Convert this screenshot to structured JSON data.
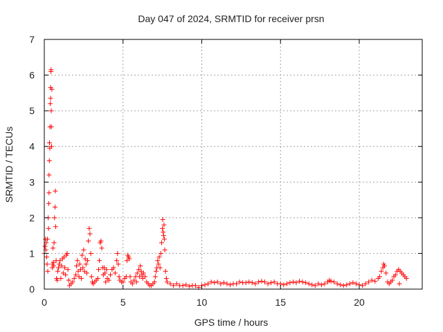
{
  "chart_data": {
    "type": "scatter",
    "title": "Day 047 of 2024, SRMTID for receiver prsn",
    "xlabel": "GPS time / hours",
    "ylabel": "SRMTID / TECUs",
    "xlim": [
      0,
      24
    ],
    "ylim": [
      0,
      7
    ],
    "xticks": [
      0,
      5,
      10,
      15,
      20
    ],
    "yticks": [
      0,
      1,
      2,
      3,
      4,
      5,
      6,
      7
    ],
    "xtick_labels": [
      "0",
      "5",
      "10",
      "15",
      "20"
    ],
    "ytick_labels": [
      "0",
      "1",
      "2",
      "3",
      "4",
      "5",
      "6",
      "7"
    ],
    "grid": true,
    "marker": "+",
    "color": "#ff0000",
    "series": [
      {
        "name": "SRMTID",
        "points": [
          [
            0.0,
            1.0
          ],
          [
            0.05,
            1.2
          ],
          [
            0.08,
            1.4
          ],
          [
            0.1,
            1.1
          ],
          [
            0.12,
            1.3
          ],
          [
            0.15,
            0.9
          ],
          [
            0.18,
            0.7
          ],
          [
            0.2,
            1.4
          ],
          [
            0.22,
            0.5
          ],
          [
            0.25,
            2.0
          ],
          [
            0.27,
            1.7
          ],
          [
            0.28,
            2.4
          ],
          [
            0.3,
            2.7
          ],
          [
            0.3,
            3.2
          ],
          [
            0.32,
            3.6
          ],
          [
            0.33,
            4.1
          ],
          [
            0.35,
            3.95
          ],
          [
            0.36,
            4.55
          ],
          [
            0.38,
            5.2
          ],
          [
            0.4,
            5.35
          ],
          [
            0.4,
            5.65
          ],
          [
            0.42,
            6.1
          ],
          [
            0.43,
            6.15
          ],
          [
            0.44,
            5.0
          ],
          [
            0.45,
            4.55
          ],
          [
            0.46,
            4.0
          ],
          [
            0.48,
            5.6
          ],
          [
            0.5,
            0.6
          ],
          [
            0.52,
            0.7
          ],
          [
            0.55,
            1.15
          ],
          [
            0.58,
            0.75
          ],
          [
            0.6,
            0.65
          ],
          [
            0.62,
            1.3
          ],
          [
            0.65,
            2.0
          ],
          [
            0.68,
            2.3
          ],
          [
            0.7,
            2.75
          ],
          [
            0.72,
            1.75
          ],
          [
            0.75,
            0.8
          ],
          [
            0.78,
            0.3
          ],
          [
            0.82,
            0.25
          ],
          [
            0.85,
            0.5
          ],
          [
            0.9,
            0.6
          ],
          [
            0.95,
            0.7
          ],
          [
            1.0,
            0.8
          ],
          [
            1.05,
            0.3
          ],
          [
            1.1,
            0.65
          ],
          [
            1.15,
            0.85
          ],
          [
            1.2,
            0.45
          ],
          [
            1.25,
            0.9
          ],
          [
            1.3,
            0.6
          ],
          [
            1.35,
            0.4
          ],
          [
            1.4,
            0.95
          ],
          [
            1.45,
            1.0
          ],
          [
            1.5,
            0.55
          ],
          [
            1.55,
            0.25
          ],
          [
            1.6,
            0.1
          ],
          [
            1.7,
            0.15
          ],
          [
            1.8,
            0.2
          ],
          [
            1.9,
            0.3
          ],
          [
            2.0,
            0.4
          ],
          [
            2.05,
            0.65
          ],
          [
            2.1,
            0.8
          ],
          [
            2.15,
            0.5
          ],
          [
            2.2,
            0.35
          ],
          [
            2.25,
            0.7
          ],
          [
            2.3,
            0.55
          ],
          [
            2.35,
            0.3
          ],
          [
            2.4,
            0.95
          ],
          [
            2.45,
            0.6
          ],
          [
            2.5,
            1.1
          ],
          [
            2.55,
            0.5
          ],
          [
            2.6,
            0.85
          ],
          [
            2.65,
            0.7
          ],
          [
            2.7,
            0.45
          ],
          [
            2.75,
            0.8
          ],
          [
            2.8,
            1.35
          ],
          [
            2.85,
            1.7
          ],
          [
            2.9,
            1.55
          ],
          [
            2.95,
            1.0
          ],
          [
            3.0,
            0.35
          ],
          [
            3.05,
            0.2
          ],
          [
            3.1,
            0.15
          ],
          [
            3.2,
            0.2
          ],
          [
            3.3,
            0.25
          ],
          [
            3.4,
            0.3
          ],
          [
            3.45,
            0.55
          ],
          [
            3.5,
            0.8
          ],
          [
            3.55,
            1.3
          ],
          [
            3.6,
            1.35
          ],
          [
            3.65,
            1.15
          ],
          [
            3.7,
            0.6
          ],
          [
            3.75,
            0.4
          ],
          [
            3.8,
            0.6
          ],
          [
            3.85,
            0.45
          ],
          [
            3.9,
            0.2
          ],
          [
            3.95,
            0.55
          ],
          [
            4.0,
            0.3
          ],
          [
            4.1,
            0.25
          ],
          [
            4.2,
            0.4
          ],
          [
            4.3,
            0.55
          ],
          [
            4.4,
            0.6
          ],
          [
            4.5,
            0.45
          ],
          [
            4.6,
            0.8
          ],
          [
            4.65,
            1.0
          ],
          [
            4.7,
            0.7
          ],
          [
            4.75,
            0.35
          ],
          [
            4.8,
            0.25
          ],
          [
            4.9,
            0.2
          ],
          [
            5.0,
            0.2
          ],
          [
            5.1,
            0.3
          ],
          [
            5.2,
            0.35
          ],
          [
            5.25,
            0.8
          ],
          [
            5.3,
            0.95
          ],
          [
            5.35,
            0.9
          ],
          [
            5.4,
            0.85
          ],
          [
            5.45,
            0.35
          ],
          [
            5.5,
            0.2
          ],
          [
            5.6,
            0.15
          ],
          [
            5.7,
            0.25
          ],
          [
            5.8,
            0.35
          ],
          [
            5.85,
            0.2
          ],
          [
            5.9,
            0.45
          ],
          [
            6.0,
            0.55
          ],
          [
            6.05,
            0.35
          ],
          [
            6.1,
            0.65
          ],
          [
            6.15,
            0.5
          ],
          [
            6.2,
            0.4
          ],
          [
            6.25,
            0.3
          ],
          [
            6.3,
            0.45
          ],
          [
            6.4,
            0.35
          ],
          [
            6.5,
            0.2
          ],
          [
            6.6,
            0.15
          ],
          [
            6.7,
            0.1
          ],
          [
            6.8,
            0.1
          ],
          [
            6.9,
            0.15
          ],
          [
            7.0,
            0.2
          ],
          [
            7.05,
            0.35
          ],
          [
            7.1,
            0.5
          ],
          [
            7.15,
            0.6
          ],
          [
            7.2,
            0.8
          ],
          [
            7.25,
            0.7
          ],
          [
            7.3,
            0.9
          ],
          [
            7.35,
            0.6
          ],
          [
            7.4,
            1.0
          ],
          [
            7.45,
            1.3
          ],
          [
            7.5,
            1.7
          ],
          [
            7.52,
            1.95
          ],
          [
            7.55,
            1.6
          ],
          [
            7.58,
            1.5
          ],
          [
            7.6,
            1.8
          ],
          [
            7.62,
            1.4
          ],
          [
            7.65,
            1.1
          ],
          [
            7.7,
            0.5
          ],
          [
            7.75,
            0.3
          ],
          [
            7.8,
            0.2
          ],
          [
            8.0,
            0.15
          ],
          [
            8.2,
            0.1
          ],
          [
            8.4,
            0.15
          ],
          [
            8.6,
            0.1
          ],
          [
            8.8,
            0.1
          ],
          [
            9.0,
            0.12
          ],
          [
            9.2,
            0.08
          ],
          [
            9.4,
            0.1
          ],
          [
            9.6,
            0.1
          ],
          [
            9.8,
            0.05
          ],
          [
            10.0,
            0.1
          ],
          [
            10.2,
            0.12
          ],
          [
            10.4,
            0.15
          ],
          [
            10.6,
            0.2
          ],
          [
            10.8,
            0.18
          ],
          [
            11.0,
            0.2
          ],
          [
            11.2,
            0.15
          ],
          [
            11.4,
            0.18
          ],
          [
            11.6,
            0.15
          ],
          [
            11.8,
            0.12
          ],
          [
            12.0,
            0.15
          ],
          [
            12.2,
            0.15
          ],
          [
            12.4,
            0.2
          ],
          [
            12.6,
            0.18
          ],
          [
            12.8,
            0.18
          ],
          [
            13.0,
            0.2
          ],
          [
            13.2,
            0.18
          ],
          [
            13.4,
            0.15
          ],
          [
            13.6,
            0.2
          ],
          [
            13.8,
            0.22
          ],
          [
            14.0,
            0.2
          ],
          [
            14.2,
            0.15
          ],
          [
            14.4,
            0.18
          ],
          [
            14.6,
            0.2
          ],
          [
            14.8,
            0.15
          ],
          [
            15.0,
            0.15
          ],
          [
            15.2,
            0.12
          ],
          [
            15.4,
            0.15
          ],
          [
            15.6,
            0.18
          ],
          [
            15.8,
            0.2
          ],
          [
            16.0,
            0.18
          ],
          [
            16.2,
            0.22
          ],
          [
            16.4,
            0.2
          ],
          [
            16.6,
            0.18
          ],
          [
            16.8,
            0.15
          ],
          [
            17.0,
            0.12
          ],
          [
            17.2,
            0.1
          ],
          [
            17.4,
            0.15
          ],
          [
            17.6,
            0.12
          ],
          [
            17.8,
            0.15
          ],
          [
            18.0,
            0.2
          ],
          [
            18.1,
            0.25
          ],
          [
            18.2,
            0.22
          ],
          [
            18.4,
            0.2
          ],
          [
            18.6,
            0.15
          ],
          [
            18.8,
            0.12
          ],
          [
            19.0,
            0.1
          ],
          [
            19.2,
            0.12
          ],
          [
            19.4,
            0.15
          ],
          [
            19.6,
            0.18
          ],
          [
            19.8,
            0.15
          ],
          [
            20.0,
            0.12
          ],
          [
            20.2,
            0.1
          ],
          [
            20.4,
            0.15
          ],
          [
            20.6,
            0.2
          ],
          [
            20.8,
            0.25
          ],
          [
            21.0,
            0.22
          ],
          [
            21.2,
            0.3
          ],
          [
            21.3,
            0.35
          ],
          [
            21.4,
            0.5
          ],
          [
            21.5,
            0.6
          ],
          [
            21.55,
            0.7
          ],
          [
            21.6,
            0.65
          ],
          [
            21.7,
            0.45
          ],
          [
            21.8,
            0.2
          ],
          [
            21.9,
            0.15
          ],
          [
            22.0,
            0.2
          ],
          [
            22.1,
            0.25
          ],
          [
            22.2,
            0.35
          ],
          [
            22.3,
            0.4
          ],
          [
            22.4,
            0.5
          ],
          [
            22.5,
            0.55
          ],
          [
            22.55,
            0.15
          ],
          [
            22.6,
            0.5
          ],
          [
            22.7,
            0.45
          ],
          [
            22.8,
            0.4
          ],
          [
            22.9,
            0.35
          ],
          [
            23.0,
            0.3
          ]
        ]
      }
    ]
  }
}
